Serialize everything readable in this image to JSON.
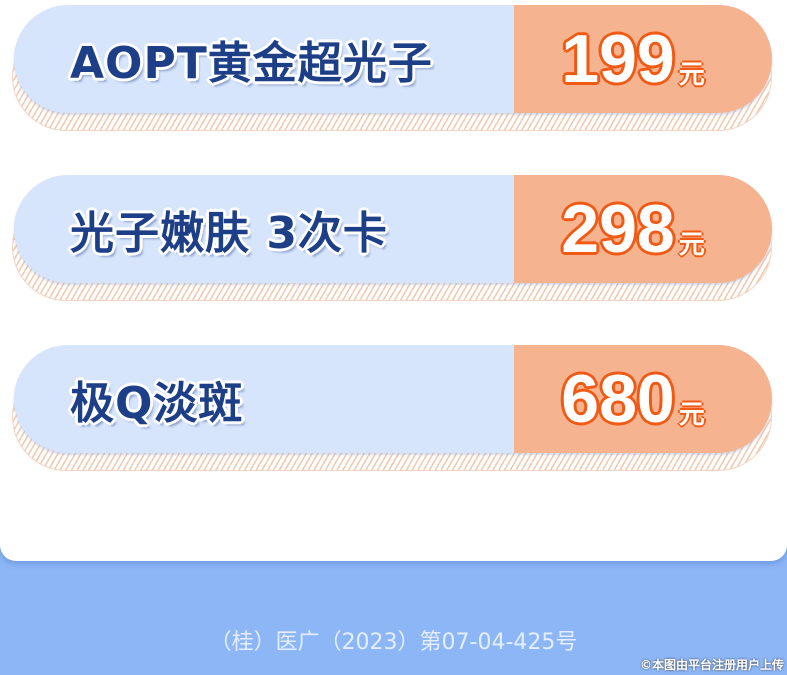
{
  "items": [
    {
      "name": "AOPT黄金超光子",
      "price": "199",
      "unit": "元"
    },
    {
      "name": "光子嫩肤 3次卡",
      "price": "298",
      "unit": "元"
    },
    {
      "name": "极Q淡斑",
      "price": "680",
      "unit": "元"
    }
  ],
  "footer": {
    "license": "（桂）医广（2023）第07-04-425号",
    "watermark": "©本图由平台注册用户上传"
  },
  "colors": {
    "name_text": "#1d3f87",
    "price_stroke": "#f05a14",
    "price_bg": "#f5b38f",
    "card_bg": "#d6e5fc",
    "page_bg": "#8db6f7"
  }
}
